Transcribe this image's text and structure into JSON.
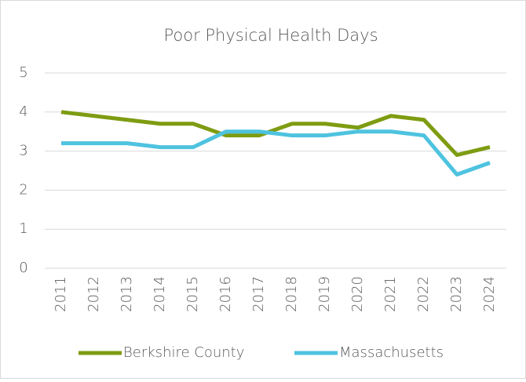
{
  "chart_data": {
    "type": "line",
    "title": "Poor Physical Health Days",
    "categories": [
      "2011",
      "2012",
      "2013",
      "2014",
      "2015",
      "2016",
      "2017",
      "2018",
      "2019",
      "2020",
      "2021",
      "2022",
      "2023",
      "2024"
    ],
    "series": [
      {
        "name": "Berkshire County",
        "color": "#7e9c12",
        "values": [
          4.0,
          3.9,
          3.8,
          3.7,
          3.7,
          3.4,
          3.4,
          3.7,
          3.7,
          3.6,
          3.9,
          3.8,
          2.9,
          3.1
        ]
      },
      {
        "name": "Massachusetts",
        "color": "#4ec3df",
        "values": [
          3.2,
          3.2,
          3.2,
          3.1,
          3.1,
          3.5,
          3.5,
          3.4,
          3.4,
          3.5,
          3.5,
          3.4,
          2.4,
          2.7
        ]
      }
    ],
    "ylim": [
      0,
      5
    ],
    "yticks": [
      0,
      1,
      2,
      3,
      4,
      5
    ],
    "grid": true,
    "legend": "bottom"
  }
}
